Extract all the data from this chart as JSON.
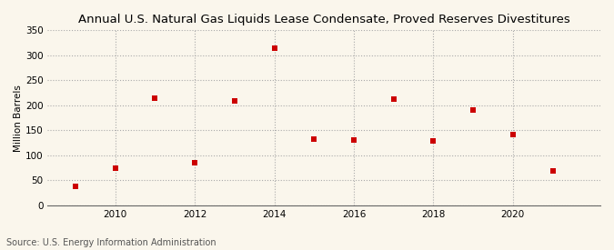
{
  "title": "Annual U.S. Natural Gas Liquids Lease Condensate, Proved Reserves Divestitures",
  "ylabel": "Million Barrels",
  "source": "Source: U.S. Energy Information Administration",
  "years": [
    2009,
    2010,
    2011,
    2012,
    2013,
    2014,
    2015,
    2016,
    2017,
    2018,
    2019,
    2020,
    2021
  ],
  "values": [
    38,
    75,
    215,
    85,
    208,
    315,
    133,
    130,
    212,
    128,
    190,
    142,
    68
  ],
  "ylim": [
    0,
    350
  ],
  "yticks": [
    0,
    50,
    100,
    150,
    200,
    250,
    300,
    350
  ],
  "xticks": [
    2010,
    2012,
    2014,
    2016,
    2018,
    2020
  ],
  "xlim": [
    2008.3,
    2022.2
  ],
  "marker_color": "#cc0000",
  "marker": "s",
  "marker_size": 20,
  "background_color": "#faf6ec",
  "grid_color": "#aaaaaa",
  "title_fontsize": 9.5,
  "label_fontsize": 7.5,
  "tick_fontsize": 7.5,
  "source_fontsize": 7.0
}
